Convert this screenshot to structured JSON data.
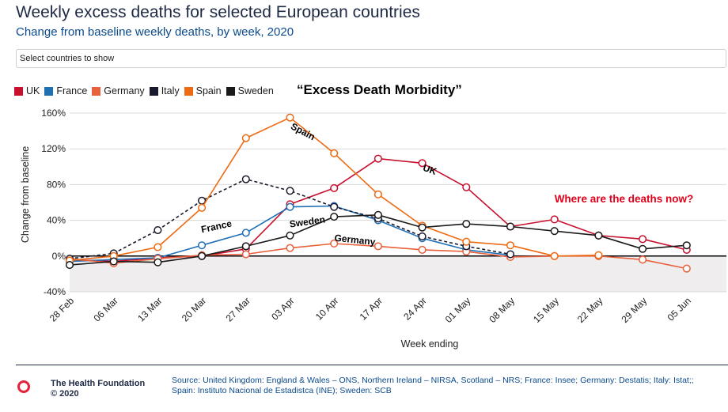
{
  "header": {
    "title": "Weekly excess deaths for selected European countries",
    "subtitle": "Change from baseline weekly deaths, by week, 2020"
  },
  "country_select": {
    "placeholder": "Select countries to show"
  },
  "annotation_title": "“Excess Death Morbidity”",
  "chart_data": {
    "type": "line",
    "xlabel": "Week ending",
    "ylabel": "Change from baseline",
    "ylim": [
      -40,
      160
    ],
    "yticks": [
      -40,
      0,
      40,
      80,
      120,
      160
    ],
    "ytick_labels": [
      "-40%",
      "0%",
      "40%",
      "80%",
      "120%",
      "160%"
    ],
    "categories": [
      "28 Feb",
      "06 Mar",
      "13 Mar",
      "20 Mar",
      "27 Mar",
      "03 Apr",
      "10 Apr",
      "17 Apr",
      "24 Apr",
      "01 May",
      "08 May",
      "15 May",
      "22 May",
      "29 May",
      "05 Jun"
    ],
    "grid": "horizontal",
    "legend_position": "top-left",
    "series": [
      {
        "name": "UK",
        "color": "#c8102e",
        "dashed": false,
        "values": [
          -4,
          -6,
          -2,
          0,
          8,
          58,
          76,
          109,
          104,
          77,
          33,
          41,
          23,
          19,
          7
        ]
      },
      {
        "name": "France",
        "color": "#1f6fb5",
        "dashed": false,
        "values": [
          -6,
          -4,
          -2,
          12,
          26,
          55,
          56,
          40,
          20,
          7,
          1,
          null,
          null,
          null,
          null
        ]
      },
      {
        "name": "Germany",
        "color": "#e8603c",
        "dashed": false,
        "values": [
          -3,
          -8,
          -3,
          1,
          2,
          9,
          14,
          11,
          7,
          5,
          -1,
          0,
          0,
          -4,
          -14
        ]
      },
      {
        "name": "Italy",
        "color": "#1a1a2e",
        "dashed": true,
        "values": [
          -3,
          3,
          29,
          62,
          86,
          73,
          55,
          42,
          22,
          11,
          2,
          null,
          null,
          null,
          null
        ]
      },
      {
        "name": "Spain",
        "color": "#ee6a12",
        "dashed": false,
        "values": [
          -5,
          0,
          10,
          54,
          132,
          155,
          115,
          69,
          34,
          16,
          12,
          0,
          1,
          null,
          null
        ]
      },
      {
        "name": "Sweden",
        "color": "#1a1a1a",
        "dashed": false,
        "values": [
          -10,
          -6,
          -7,
          0,
          11,
          23,
          44,
          46,
          32,
          36,
          33,
          28,
          23,
          8,
          12
        ]
      }
    ],
    "annotations": [
      {
        "text": "Spain",
        "x": "03 Apr",
        "y": 143
      },
      {
        "text": "UK",
        "x": "24 Apr",
        "y": 96
      },
      {
        "text": "France",
        "x": "20 Mar",
        "y": 26
      },
      {
        "text": "Sweden",
        "x": "03 Apr",
        "y": 32
      },
      {
        "text": "Germany",
        "x": "10 Apr",
        "y": 17
      },
      {
        "text": "Where are the deaths now?",
        "x": "15 May",
        "y": 60
      }
    ]
  },
  "footer": {
    "brand": "The Health Foundation",
    "year": "© 2020",
    "source_line1": "Source: United Kingdom: England & Wales – ONS, Northern Ireland – NIRSA, Scotland – NRS; France: Insee; Germany: Destatis; Italy: Istat;;",
    "source_line2": "Spain: Instituto Nacional de Estadistca (INE); Sweden: SCB"
  }
}
